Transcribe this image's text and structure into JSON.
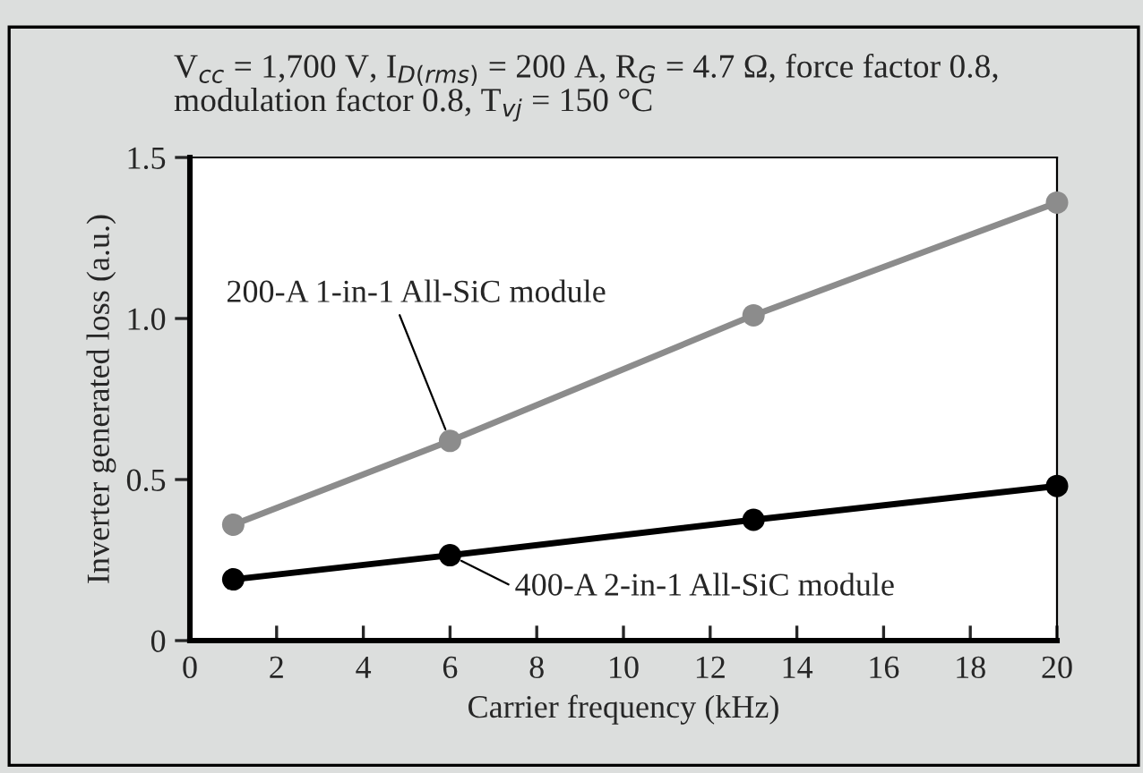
{
  "chart_data": {
    "type": "line",
    "title": "V$_{cc}$ = 1,700 V, I$_{D(rms)}$ = 200 A, R$_{G}$ = 4.7 Ω, force factor 0.8,\nmodulation factor 0.8, T$_{vj}$ = 150 °C",
    "xlabel": "Carrier frequency (kHz)",
    "ylabel": "Inverter generated loss (a.u.)",
    "x": [
      1,
      6,
      13,
      20
    ],
    "series": [
      {
        "name": "200-A 1-in-1 All-SiC module",
        "color": "#8c8c8c",
        "values": [
          0.36,
          0.62,
          1.01,
          1.36
        ]
      },
      {
        "name": "400-A 2-in-1 All-SiC module",
        "color": "#000000",
        "values": [
          0.19,
          0.265,
          0.375,
          0.48
        ]
      }
    ],
    "xlim": [
      0,
      20
    ],
    "xticks": [
      0,
      2,
      4,
      6,
      8,
      10,
      12,
      14,
      16,
      18,
      20
    ],
    "ylim": [
      0,
      1.5
    ],
    "yticks": [
      0,
      {
        "value": 0.5,
        "label": "0.5"
      },
      {
        "value": 1.0,
        "label": "1.0"
      },
      1.5
    ],
    "grid": false,
    "marker": "circle",
    "line_style": "solid"
  }
}
